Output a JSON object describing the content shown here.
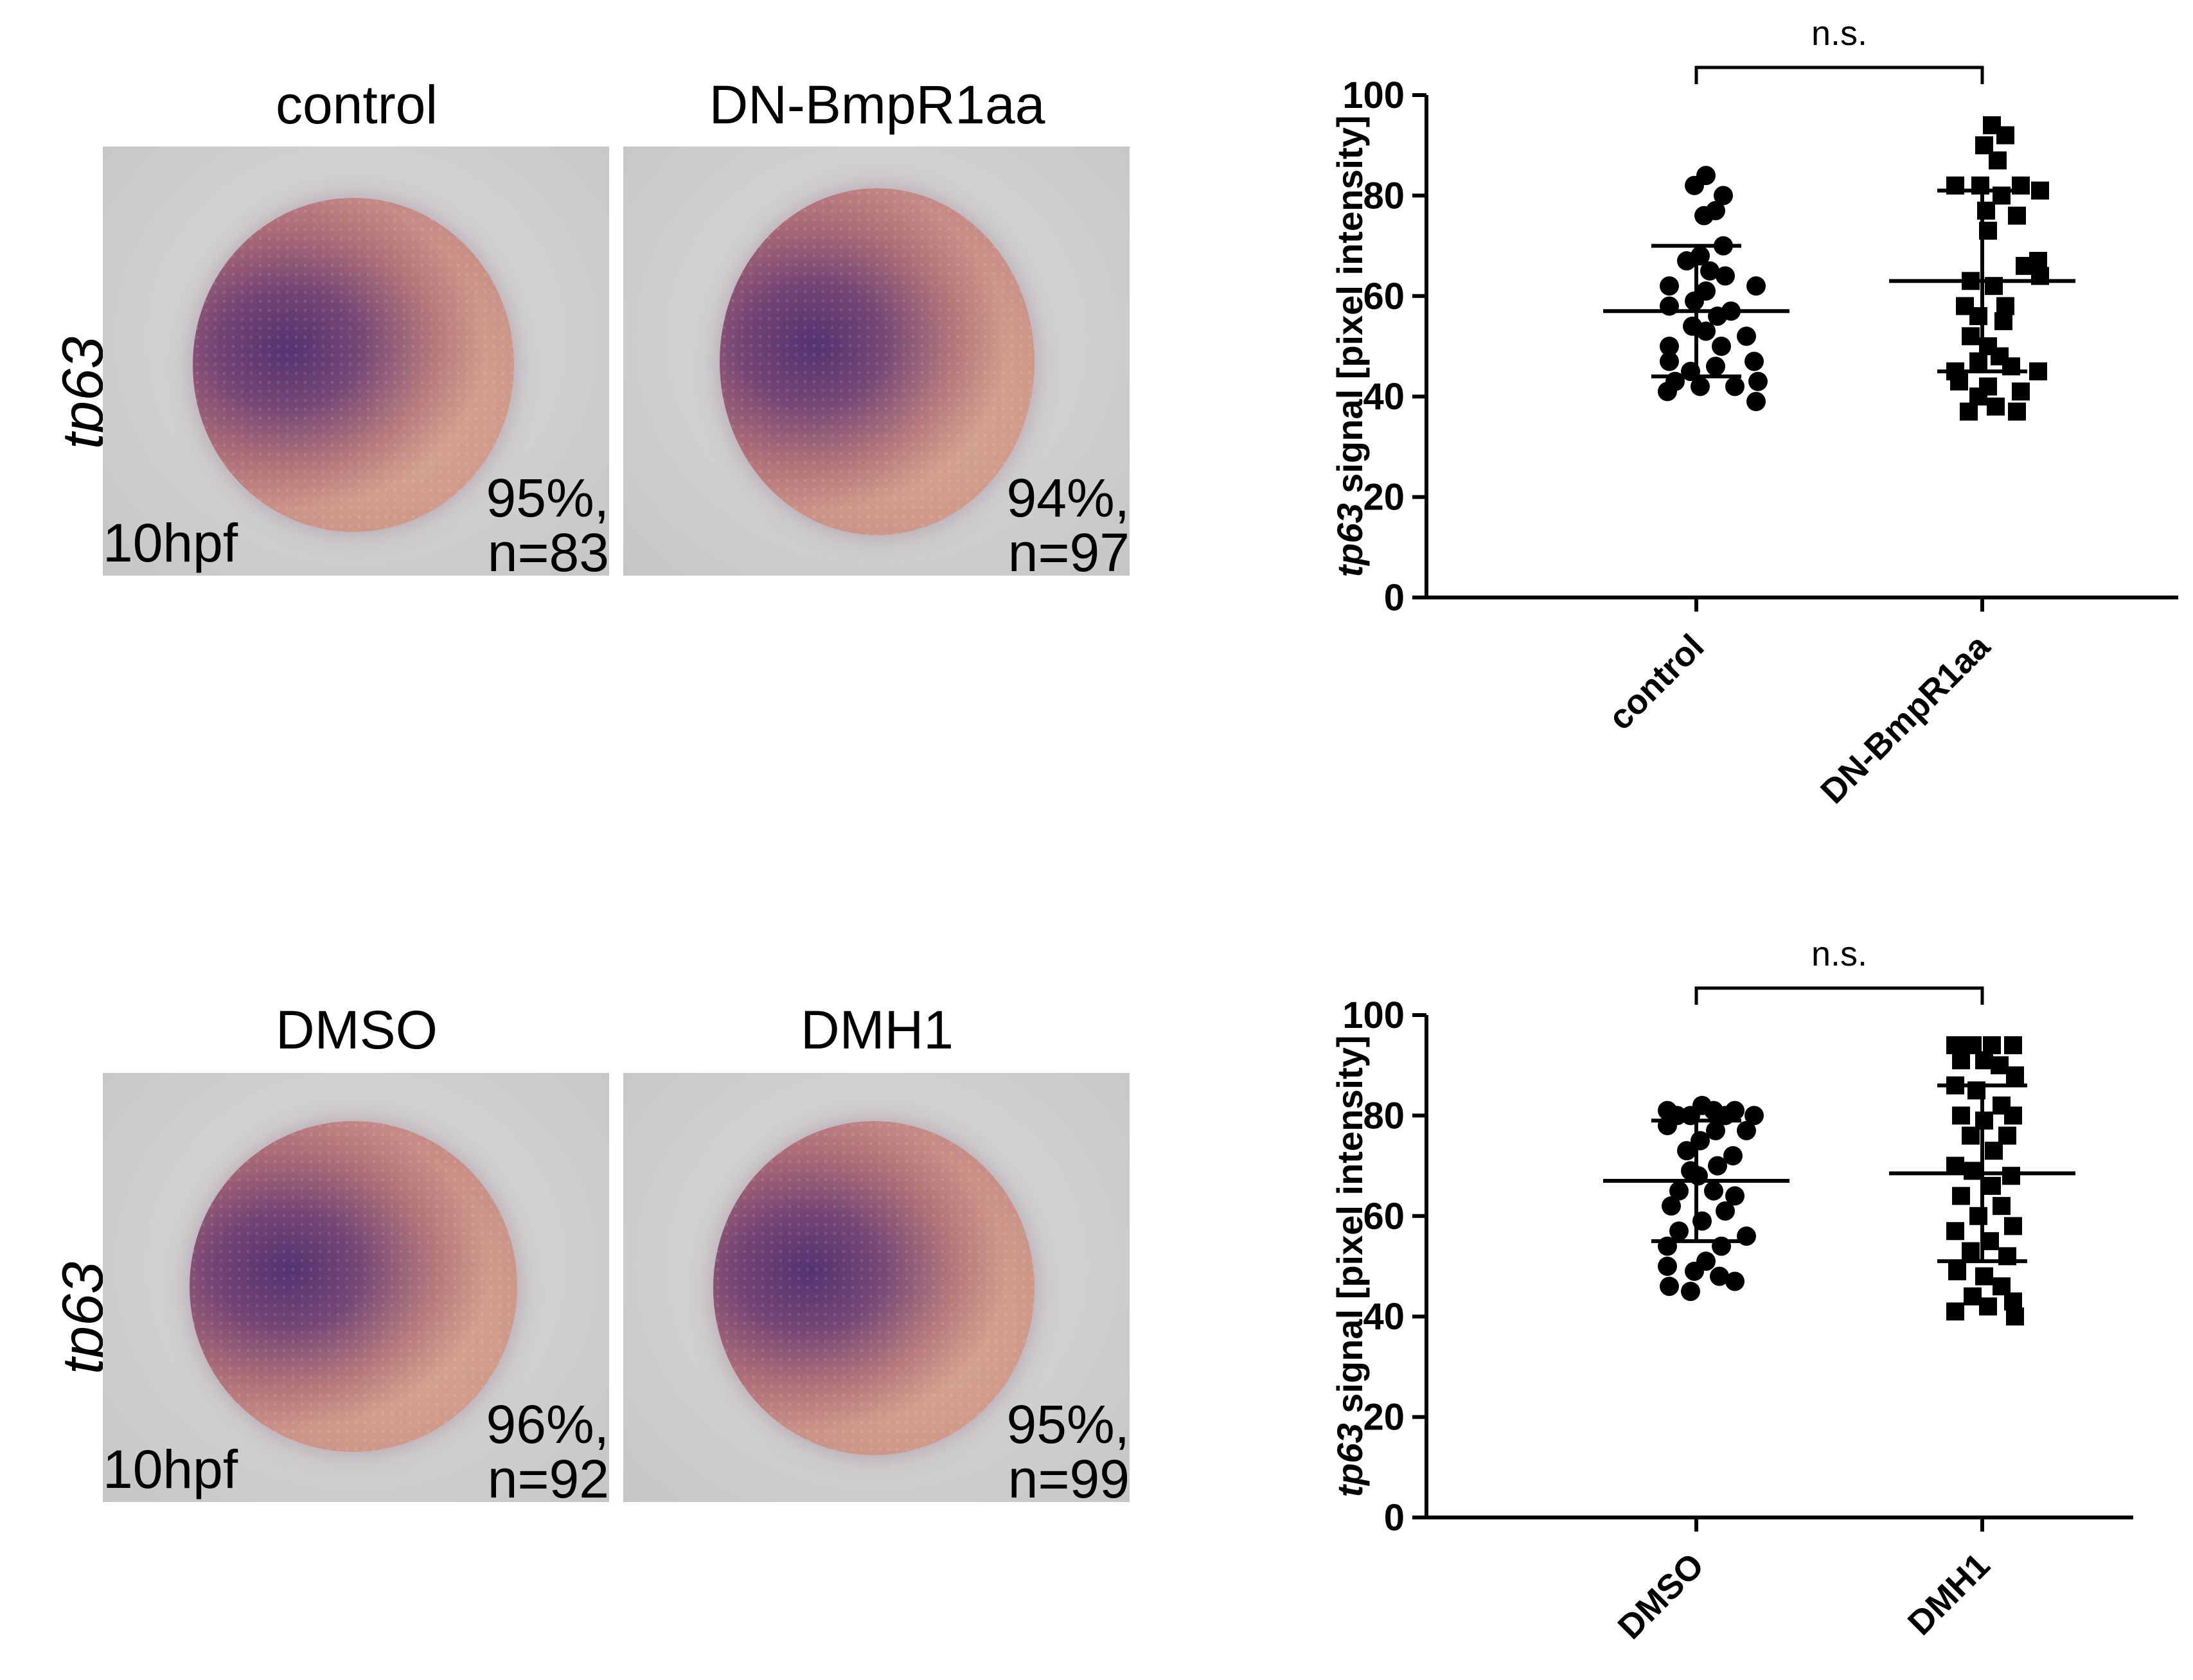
{
  "panels": [
    {
      "row_label": "tp63",
      "images": [
        {
          "title": "control",
          "stage": "10hpf",
          "percent": "95%,",
          "n": "n=83"
        },
        {
          "title": "DN-BmpR1aa",
          "stage": "",
          "percent": "94%,",
          "n": "n=97"
        }
      ]
    },
    {
      "row_label": "tp63",
      "images": [
        {
          "title": "DMSO",
          "stage": "10hpf",
          "percent": "96%,",
          "n": "n=92"
        },
        {
          "title": "DMH1",
          "stage": "",
          "percent": "95%,",
          "n": "n=99"
        }
      ]
    }
  ],
  "chart_data": [
    {
      "type": "scatter",
      "title": "",
      "ylabel_italic": "tp63",
      "ylabel_rest": " signal [pixel intensity]",
      "ylim": [
        0,
        100
      ],
      "yticks": [
        0,
        20,
        40,
        60,
        80,
        100
      ],
      "categories": [
        "control",
        "DN-BmpR1aa"
      ],
      "significance": "n.s.",
      "series": [
        {
          "name": "control",
          "marker": "circle",
          "mean": 57,
          "sd_low": 44,
          "sd_high": 70,
          "points": [
            {
              "dx": 0.1,
              "y": 84
            },
            {
              "dx": -0.02,
              "y": 82
            },
            {
              "dx": 0.28,
              "y": 80
            },
            {
              "dx": 0.2,
              "y": 77
            },
            {
              "dx": 0.08,
              "y": 76
            },
            {
              "dx": 0.28,
              "y": 70
            },
            {
              "dx": 0.04,
              "y": 68
            },
            {
              "dx": -0.1,
              "y": 67
            },
            {
              "dx": 0.14,
              "y": 65
            },
            {
              "dx": 0.3,
              "y": 64
            },
            {
              "dx": -0.28,
              "y": 62
            },
            {
              "dx": 0.62,
              "y": 62
            },
            {
              "dx": 0.1,
              "y": 61
            },
            {
              "dx": -0.02,
              "y": 59
            },
            {
              "dx": -0.28,
              "y": 58
            },
            {
              "dx": 0.36,
              "y": 57
            },
            {
              "dx": 0.22,
              "y": 56
            },
            {
              "dx": -0.04,
              "y": 54
            },
            {
              "dx": 0.1,
              "y": 53
            },
            {
              "dx": 0.52,
              "y": 52
            },
            {
              "dx": -0.28,
              "y": 50
            },
            {
              "dx": 0.26,
              "y": 50
            },
            {
              "dx": -0.28,
              "y": 47
            },
            {
              "dx": 0.6,
              "y": 47
            },
            {
              "dx": 0.2,
              "y": 46
            },
            {
              "dx": -0.06,
              "y": 45
            },
            {
              "dx": 0.64,
              "y": 43
            },
            {
              "dx": -0.22,
              "y": 43
            },
            {
              "dx": 0.04,
              "y": 42
            },
            {
              "dx": -0.3,
              "y": 41
            },
            {
              "dx": 0.4,
              "y": 42
            },
            {
              "dx": 0.62,
              "y": 39
            }
          ]
        },
        {
          "name": "DN-BmpR1aa",
          "marker": "square",
          "mean": 63,
          "sd_low": 45,
          "sd_high": 81,
          "points": [
            {
              "dx": 0.1,
              "y": 94
            },
            {
              "dx": 0.24,
              "y": 92
            },
            {
              "dx": 0.02,
              "y": 90
            },
            {
              "dx": 0.16,
              "y": 87
            },
            {
              "dx": -0.02,
              "y": 82
            },
            {
              "dx": -0.28,
              "y": 82
            },
            {
              "dx": 0.4,
              "y": 82
            },
            {
              "dx": 0.6,
              "y": 81
            },
            {
              "dx": 0.2,
              "y": 80
            },
            {
              "dx": 0.04,
              "y": 77
            },
            {
              "dx": 0.36,
              "y": 76
            },
            {
              "dx": 0.06,
              "y": 73
            },
            {
              "dx": 0.58,
              "y": 67
            },
            {
              "dx": 0.44,
              "y": 66
            },
            {
              "dx": 0.6,
              "y": 64
            },
            {
              "dx": -0.12,
              "y": 63
            },
            {
              "dx": 0.12,
              "y": 62
            },
            {
              "dx": 0.24,
              "y": 58
            },
            {
              "dx": -0.18,
              "y": 58
            },
            {
              "dx": -0.04,
              "y": 56
            },
            {
              "dx": 0.22,
              "y": 55
            },
            {
              "dx": -0.12,
              "y": 52
            },
            {
              "dx": 0.06,
              "y": 50
            },
            {
              "dx": 0.18,
              "y": 48
            },
            {
              "dx": -0.04,
              "y": 47
            },
            {
              "dx": 0.3,
              "y": 46
            },
            {
              "dx": -0.28,
              "y": 45
            },
            {
              "dx": 0.58,
              "y": 45
            },
            {
              "dx": -0.24,
              "y": 43
            },
            {
              "dx": 0.06,
              "y": 42
            },
            {
              "dx": 0.4,
              "y": 41
            },
            {
              "dx": -0.04,
              "y": 40
            },
            {
              "dx": 0.14,
              "y": 38
            },
            {
              "dx": -0.14,
              "y": 37
            },
            {
              "dx": 0.36,
              "y": 37
            }
          ]
        }
      ]
    },
    {
      "type": "scatter",
      "title": "",
      "ylabel_italic": "tp63",
      "ylabel_rest": " signal [pixel intensity]",
      "ylim": [
        0,
        100
      ],
      "yticks": [
        0,
        20,
        40,
        60,
        80,
        100
      ],
      "categories": [
        "DMSO",
        "DMH1"
      ],
      "significance": "n.s.",
      "series": [
        {
          "name": "DMSO",
          "marker": "circle",
          "mean": 67,
          "sd_low": 55,
          "sd_high": 79,
          "points": [
            {
              "dx": 0.06,
              "y": 82
            },
            {
              "dx": -0.3,
              "y": 81
            },
            {
              "dx": 0.18,
              "y": 81
            },
            {
              "dx": 0.4,
              "y": 81
            },
            {
              "dx": -0.06,
              "y": 80
            },
            {
              "dx": 0.3,
              "y": 80
            },
            {
              "dx": -0.2,
              "y": 80
            },
            {
              "dx": 0.6,
              "y": 80
            },
            {
              "dx": -0.3,
              "y": 78
            },
            {
              "dx": 0.2,
              "y": 77
            },
            {
              "dx": 0.52,
              "y": 77
            },
            {
              "dx": 0.04,
              "y": 75
            },
            {
              "dx": -0.1,
              "y": 73
            },
            {
              "dx": 0.38,
              "y": 72
            },
            {
              "dx": 0.22,
              "y": 70
            },
            {
              "dx": -0.06,
              "y": 69
            },
            {
              "dx": 0.02,
              "y": 68
            },
            {
              "dx": -0.18,
              "y": 65
            },
            {
              "dx": 0.18,
              "y": 65
            },
            {
              "dx": 0.4,
              "y": 64
            },
            {
              "dx": -0.26,
              "y": 62
            },
            {
              "dx": 0.3,
              "y": 61
            },
            {
              "dx": 0.06,
              "y": 59
            },
            {
              "dx": -0.18,
              "y": 57
            },
            {
              "dx": 0.52,
              "y": 56
            },
            {
              "dx": -0.3,
              "y": 54
            },
            {
              "dx": 0.26,
              "y": 54
            },
            {
              "dx": 0.1,
              "y": 51
            },
            {
              "dx": -0.3,
              "y": 50
            },
            {
              "dx": -0.02,
              "y": 49
            },
            {
              "dx": 0.24,
              "y": 48
            },
            {
              "dx": -0.28,
              "y": 46
            },
            {
              "dx": 0.4,
              "y": 47
            },
            {
              "dx": -0.06,
              "y": 45
            }
          ]
        },
        {
          "name": "DMH1",
          "marker": "square",
          "mean": 68.5,
          "sd_low": 51,
          "sd_high": 86,
          "points": [
            {
              "dx": -0.28,
              "y": 94
            },
            {
              "dx": -0.1,
              "y": 94
            },
            {
              "dx": 0.1,
              "y": 94
            },
            {
              "dx": 0.32,
              "y": 94
            },
            {
              "dx": -0.22,
              "y": 91
            },
            {
              "dx": 0.02,
              "y": 91
            },
            {
              "dx": 0.18,
              "y": 90
            },
            {
              "dx": 0.34,
              "y": 88
            },
            {
              "dx": -0.28,
              "y": 86
            },
            {
              "dx": -0.06,
              "y": 85
            },
            {
              "dx": 0.2,
              "y": 82
            },
            {
              "dx": -0.22,
              "y": 80
            },
            {
              "dx": 0.32,
              "y": 80
            },
            {
              "dx": 0.02,
              "y": 79
            },
            {
              "dx": -0.12,
              "y": 76
            },
            {
              "dx": 0.26,
              "y": 76
            },
            {
              "dx": 0.12,
              "y": 73
            },
            {
              "dx": -0.28,
              "y": 70
            },
            {
              "dx": -0.1,
              "y": 69
            },
            {
              "dx": 0.3,
              "y": 68
            },
            {
              "dx": 0.1,
              "y": 66
            },
            {
              "dx": -0.22,
              "y": 64
            },
            {
              "dx": 0.2,
              "y": 62
            },
            {
              "dx": -0.04,
              "y": 60
            },
            {
              "dx": 0.32,
              "y": 58
            },
            {
              "dx": -0.28,
              "y": 57
            },
            {
              "dx": 0.08,
              "y": 55
            },
            {
              "dx": -0.12,
              "y": 53
            },
            {
              "dx": 0.26,
              "y": 52
            },
            {
              "dx": -0.26,
              "y": 49
            },
            {
              "dx": 0.02,
              "y": 48
            },
            {
              "dx": 0.2,
              "y": 46
            },
            {
              "dx": -0.1,
              "y": 44
            },
            {
              "dx": 0.32,
              "y": 43
            },
            {
              "dx": -0.28,
              "y": 41
            },
            {
              "dx": 0.06,
              "y": 42
            },
            {
              "dx": 0.34,
              "y": 40
            }
          ]
        }
      ]
    }
  ]
}
